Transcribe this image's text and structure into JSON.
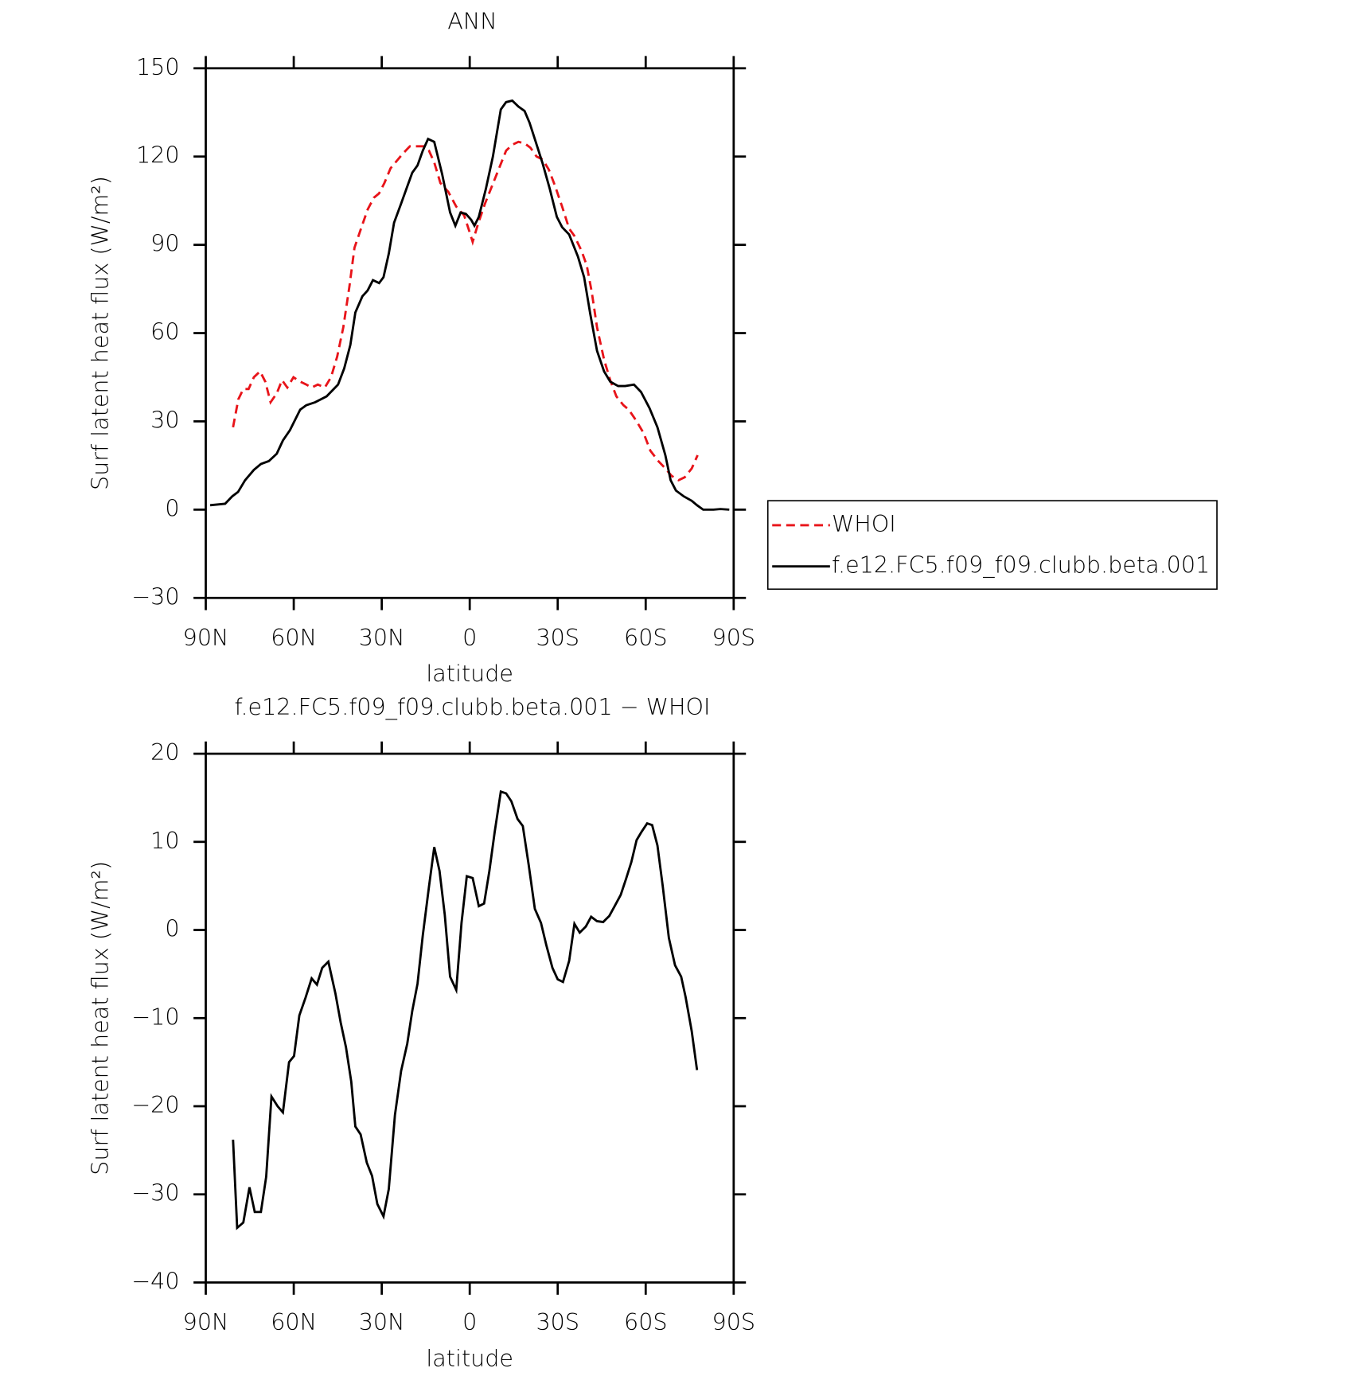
{
  "chart_data": [
    {
      "type": "line",
      "title": "ANN",
      "x_label": "latitude",
      "y_label": "Surf latent heat flux (W/m²)",
      "xlim": [
        90,
        -90
      ],
      "ylim": [
        -30,
        150
      ],
      "xticks": [
        {
          "value": 90,
          "label": "90N"
        },
        {
          "value": 60,
          "label": "60N"
        },
        {
          "value": 30,
          "label": "30N"
        },
        0,
        {
          "value": -30,
          "label": "30S"
        },
        {
          "value": -60,
          "label": "60S"
        },
        {
          "value": -90,
          "label": "90S"
        }
      ],
      "yticks": [
        {
          "value": -30,
          "label": "−30"
        },
        0,
        30,
        60,
        90,
        120,
        150
      ],
      "legend": "outside-right",
      "series": [
        {
          "name": "WHOI",
          "color": "#e8141a",
          "line_style": "dashed",
          "x": [
            80.7,
            78.9,
            77.2,
            75.4,
            73.6,
            71.5,
            69.7,
            67.9,
            65.8,
            64,
            62.2,
            60.1,
            57.8,
            55.7,
            53.9,
            51.8,
            49.4,
            47.3,
            45.2,
            43.1,
            41,
            39.3,
            36.9,
            34.8,
            32.7,
            30.9,
            29.1,
            27,
            24.9,
            22.8,
            20.4,
            17.5,
            15.7,
            13.9,
            12.1,
            10,
            7.3,
            4.6,
            1.9,
            0.1,
            -1,
            -2.8,
            -5.2,
            -7.6,
            -10,
            -12.4,
            -14.5,
            -16.6,
            -18.7,
            -20.7,
            -22.8,
            -24.9,
            -27,
            -29.1,
            -31.5,
            -33.9,
            -35.7,
            -38.1,
            -39.9,
            -41.6,
            -43.4,
            -45.8,
            -47.9,
            -50,
            -52.4,
            -54.2,
            -56.6,
            -59.3,
            -61.6,
            -64.3,
            -66.7,
            -68.8,
            -71.2,
            -73.3,
            -75.7,
            -77.7
          ],
          "values": [
            28,
            37.5,
            41,
            41,
            45,
            47,
            43.5,
            36.5,
            39.5,
            44,
            41.5,
            45,
            43.5,
            42.5,
            41.5,
            42.5,
            41.5,
            45,
            52,
            62,
            76,
            89,
            96,
            102,
            106,
            107.5,
            111,
            116,
            118.5,
            121,
            123.5,
            123.5,
            123.5,
            122,
            118,
            111,
            108,
            103,
            100,
            94.5,
            91,
            97,
            104,
            110,
            116,
            122,
            124,
            125,
            124.5,
            123,
            120,
            119,
            115.5,
            110,
            103,
            95.5,
            93,
            88,
            83,
            74,
            62,
            51,
            44,
            38.5,
            35.5,
            34,
            30.5,
            26,
            20,
            16.5,
            14,
            11.5,
            10,
            11,
            14,
            18.5
          ]
        },
        {
          "name": "f.e12.FC5.f09_f09.clubb.beta.001",
          "color": "#000000",
          "line_style": "solid",
          "x": [
            88.5,
            83.4,
            81,
            79,
            76.6,
            73.6,
            71.2,
            68.5,
            65.8,
            63.7,
            61.3,
            57.8,
            55.7,
            52.7,
            48.8,
            44.9,
            42.8,
            40.7,
            39,
            36.6,
            34.8,
            33,
            30.9,
            29.4,
            27.6,
            25.8,
            23.4,
            21.6,
            19.6,
            17.8,
            16,
            14.2,
            12.1,
            9.4,
            6.7,
            4.9,
            3.1,
            1.3,
            -0.5,
            -1.6,
            -3.1,
            -5.5,
            -7.9,
            -10.6,
            -12.4,
            -14.5,
            -16.6,
            -18.7,
            -20.4,
            -22.5,
            -24.9,
            -27.3,
            -29.7,
            -31.5,
            -33.9,
            -36.9,
            -39,
            -41.1,
            -43.4,
            -45.8,
            -47.9,
            -50.6,
            -53,
            -56,
            -58.4,
            -61.3,
            -64,
            -66.7,
            -68.5,
            -70.3,
            -73,
            -75.7,
            -77.5,
            -79.6,
            -83.1,
            -85.5,
            -88.5
          ],
          "values": [
            1.5,
            2,
            4.5,
            6,
            10,
            13.5,
            15.5,
            16.5,
            19,
            23.5,
            27,
            34,
            35.5,
            36.5,
            38.5,
            42.5,
            48,
            56,
            67,
            72.5,
            74.5,
            78,
            77,
            79,
            87,
            97.5,
            104,
            109,
            114.5,
            117,
            122,
            126,
            125,
            114,
            101,
            96.5,
            101,
            100.5,
            98.5,
            96.5,
            99.5,
            109,
            120,
            136,
            138.5,
            139,
            137,
            135.5,
            131.5,
            125,
            117.5,
            109,
            99.5,
            96,
            93.5,
            86,
            79,
            66.5,
            54,
            47,
            43.5,
            42,
            42,
            42.5,
            40,
            34.5,
            28,
            18.5,
            10,
            6.5,
            4.5,
            3,
            1.5,
            0,
            0,
            0.2,
            0
          ]
        }
      ]
    },
    {
      "type": "line",
      "title": "f.e12.FC5.f09_f09.clubb.beta.001 − WHOI",
      "x_label": "latitude",
      "y_label": "Surf latent heat flux (W/m²)",
      "xlim": [
        90,
        -90
      ],
      "ylim": [
        -40,
        20
      ],
      "xticks": [
        {
          "value": 90,
          "label": "90N"
        },
        {
          "value": 60,
          "label": "60N"
        },
        {
          "value": 30,
          "label": "30N"
        },
        0,
        {
          "value": -30,
          "label": "30S"
        },
        {
          "value": -60,
          "label": "60S"
        },
        {
          "value": -90,
          "label": "90S"
        }
      ],
      "yticks": [
        {
          "value": -40,
          "label": "−40"
        },
        {
          "value": -30,
          "label": "−30"
        },
        {
          "value": -20,
          "label": "−20"
        },
        {
          "value": -10,
          "label": "−10"
        },
        0,
        10,
        20
      ],
      "series": [
        {
          "color": "#000000",
          "line_style": "solid",
          "x": [
            80.7,
            79.3,
            77.2,
            75.1,
            73.3,
            71.2,
            69.4,
            67.6,
            65.5,
            63.7,
            61.6,
            59.9,
            58.1,
            56,
            53.9,
            52.1,
            50.3,
            48.2,
            45.8,
            44,
            42.2,
            40.4,
            39,
            37.2,
            35.1,
            33.3,
            31.5,
            29.4,
            27.6,
            25.5,
            23.4,
            21.3,
            19.6,
            17.8,
            16,
            13.9,
            12.1,
            10.3,
            8.5,
            6.7,
            4.6,
            2.8,
            1,
            -1,
            -3.1,
            -4.9,
            -6.7,
            -8.5,
            -10.6,
            -12.4,
            -14.2,
            -16.3,
            -18.1,
            -20.1,
            -22.2,
            -24.3,
            -26.1,
            -28.2,
            -30,
            -31.8,
            -33.9,
            -35.7,
            -37.5,
            -39.6,
            -41.4,
            -43.4,
            -45.5,
            -47.6,
            -49.4,
            -51.5,
            -53.3,
            -55.1,
            -56.9,
            -58.7,
            -60.5,
            -62.2,
            -64,
            -65.8,
            -67.9,
            -70,
            -72.1,
            -73.6,
            -75.7,
            -77.5
          ],
          "values": [
            -23.8,
            -33.8,
            -33.2,
            -29.2,
            -32,
            -32,
            -28,
            -18.9,
            -20,
            -20.7,
            -15,
            -14.3,
            -9.7,
            -7.7,
            -5.5,
            -6.2,
            -4.3,
            -3.6,
            -7.2,
            -10.5,
            -13.3,
            -17.2,
            -22.3,
            -23.2,
            -26.4,
            -27.9,
            -31.1,
            -32.5,
            -29.4,
            -21,
            -16,
            -12.9,
            -9.2,
            -6.1,
            -0.6,
            4.9,
            9.4,
            6.7,
            1.7,
            -5.3,
            -6.8,
            0.8,
            6.1,
            5.9,
            2.7,
            3,
            6.7,
            11.1,
            15.7,
            15.5,
            14.6,
            12.6,
            11.8,
            7.4,
            2.4,
            0.8,
            -1.7,
            -4.3,
            -5.6,
            -5.9,
            -3.5,
            0.7,
            -0.3,
            0.4,
            1.5,
            1,
            0.9,
            1.6,
            2.7,
            4,
            5.8,
            7.7,
            10.2,
            11.2,
            12.1,
            11.9,
            9.6,
            5,
            -0.9,
            -4,
            -5.3,
            -7.6,
            -11.5,
            -15.9
          ]
        }
      ]
    }
  ]
}
